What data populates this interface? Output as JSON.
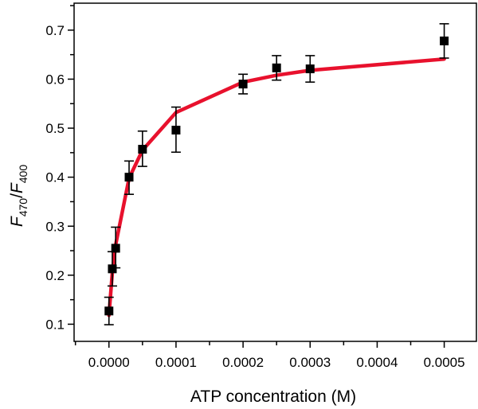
{
  "chart_data": {
    "type": "scatter",
    "xlabel": "ATP concentration (M)",
    "ylabel": {
      "parts": [
        {
          "text": "F",
          "style": "italic",
          "sub": false
        },
        {
          "text": "470",
          "style": "normal",
          "sub": true
        },
        {
          "text": "/",
          "style": "normal",
          "sub": false
        },
        {
          "text": "F",
          "style": "italic",
          "sub": false
        },
        {
          "text": "400",
          "style": "normal",
          "sub": true
        }
      ]
    },
    "xlim": [
      -5.2e-05,
      0.000548
    ],
    "ylim": [
      0.065,
      0.755
    ],
    "x_ticks": [
      {
        "value": 0.0,
        "label": "0.0000"
      },
      {
        "value": 0.0001,
        "label": "0.0001"
      },
      {
        "value": 0.0002,
        "label": "0.0002"
      },
      {
        "value": 0.0003,
        "label": "0.0003"
      },
      {
        "value": 0.0004,
        "label": "0.0004"
      },
      {
        "value": 0.0005,
        "label": "0.0005"
      }
    ],
    "x_minor_ticks": [
      -5e-05,
      5e-05,
      0.00015,
      0.00025,
      0.00035,
      0.00045
    ],
    "y_ticks": [
      {
        "value": 0.1,
        "label": "0.1"
      },
      {
        "value": 0.2,
        "label": "0.2"
      },
      {
        "value": 0.3,
        "label": "0.3"
      },
      {
        "value": 0.4,
        "label": "0.4"
      },
      {
        "value": 0.5,
        "label": "0.5"
      },
      {
        "value": 0.6,
        "label": "0.6"
      },
      {
        "value": 0.7,
        "label": "0.7"
      }
    ],
    "y_minor_ticks": [
      0.15,
      0.25,
      0.35,
      0.45,
      0.55,
      0.65,
      0.75
    ],
    "grid": false,
    "series": [
      {
        "kind": "points",
        "marker": "square",
        "color": "#000000",
        "x": [
          0.0,
          5e-06,
          1e-05,
          3e-05,
          5e-05,
          0.0001,
          0.0002,
          0.00025,
          0.0003,
          0.0005
        ],
        "y": [
          0.127,
          0.213,
          0.255,
          0.4,
          0.457,
          0.496,
          0.59,
          0.623,
          0.621,
          0.678
        ],
        "err_low": [
          0.028,
          0.035,
          0.04,
          0.035,
          0.035,
          0.045,
          0.02,
          0.025,
          0.027,
          0.035
        ],
        "err_high": [
          0.028,
          0.035,
          0.043,
          0.033,
          0.037,
          0.047,
          0.02,
          0.025,
          0.027,
          0.035
        ]
      },
      {
        "kind": "fit",
        "color": "#e8112d",
        "x": [
          0.0,
          5e-06,
          1e-05,
          3e-05,
          5e-05,
          0.0001,
          0.0002,
          0.00025,
          0.0003,
          0.0005
        ],
        "y": [
          0.118,
          0.205,
          0.262,
          0.398,
          0.455,
          0.532,
          0.594,
          0.608,
          0.618,
          0.641
        ]
      }
    ]
  }
}
